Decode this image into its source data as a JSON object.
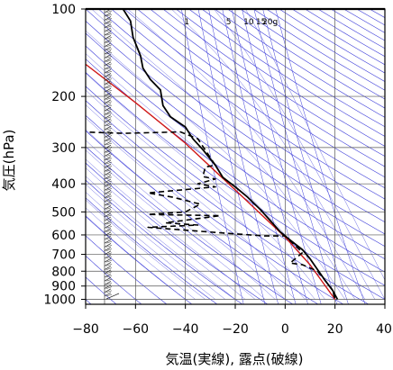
{
  "chart_data": {
    "type": "line",
    "title": "",
    "xlabel": "気温(実線), 露点(破線)",
    "ylabel": "気圧(hPa)",
    "x_ticks": [
      -80,
      -60,
      -40,
      -20,
      0,
      20,
      40
    ],
    "y_ticks": [
      100,
      200,
      300,
      400,
      500,
      600,
      700,
      800,
      900,
      1000
    ],
    "xlim": [
      -80,
      40
    ],
    "ylim": [
      1040,
      100
    ],
    "y_scale": "log",
    "mixing_ratio_labels": [
      "1",
      "5",
      "10",
      "15",
      "20g"
    ],
    "series": [
      {
        "style": "solid-black",
        "points": [
          [
            -65,
            100
          ],
          [
            -62,
            110
          ],
          [
            -61,
            125
          ],
          [
            -58,
            145
          ],
          [
            -57,
            160
          ],
          [
            -54,
            175
          ],
          [
            -50,
            190
          ],
          [
            -49,
            215
          ],
          [
            -46,
            235
          ],
          [
            -40,
            255
          ],
          [
            -37,
            280
          ],
          [
            -33,
            305
          ],
          [
            -28,
            345
          ],
          [
            -25,
            380
          ],
          [
            -20,
            410
          ],
          [
            -15,
            445
          ],
          [
            -10,
            490
          ],
          [
            -6,
            535
          ],
          [
            -2,
            585
          ],
          [
            2,
            625
          ],
          [
            7,
            675
          ],
          [
            10,
            725
          ],
          [
            13,
            790
          ],
          [
            16,
            860
          ],
          [
            19,
            930
          ],
          [
            21,
            1000
          ]
        ]
      },
      {
        "style": "dashed-black",
        "points": [
          [
            -82,
            265
          ],
          [
            -65,
            268
          ],
          [
            -42,
            265
          ],
          [
            -35,
            280
          ],
          [
            -28,
            345
          ],
          [
            -32,
            350
          ],
          [
            -33,
            378
          ],
          [
            -28,
            385
          ],
          [
            -35,
            400
          ],
          [
            -28,
            410
          ],
          [
            -55,
            430
          ],
          [
            -45,
            445
          ],
          [
            -34,
            470
          ],
          [
            -40,
            500
          ],
          [
            -55,
            510
          ],
          [
            -26,
            515
          ],
          [
            -48,
            545
          ],
          [
            -35,
            555
          ],
          [
            -55,
            565
          ],
          [
            -26,
            590
          ],
          [
            -8,
            605
          ],
          [
            0,
            605
          ],
          [
            7,
            690
          ],
          [
            2,
            750
          ],
          [
            7,
            760
          ],
          [
            13,
            800
          ],
          [
            16,
            860
          ],
          [
            19,
            930
          ],
          [
            20,
            1000
          ]
        ]
      },
      {
        "style": "solid-red",
        "points": [
          [
            -80,
            155
          ],
          [
            -60,
            210
          ],
          [
            -40,
            290
          ],
          [
            -20,
            420
          ],
          [
            0,
            610
          ],
          [
            10,
            760
          ],
          [
            20,
            1000
          ]
        ]
      }
    ]
  }
}
